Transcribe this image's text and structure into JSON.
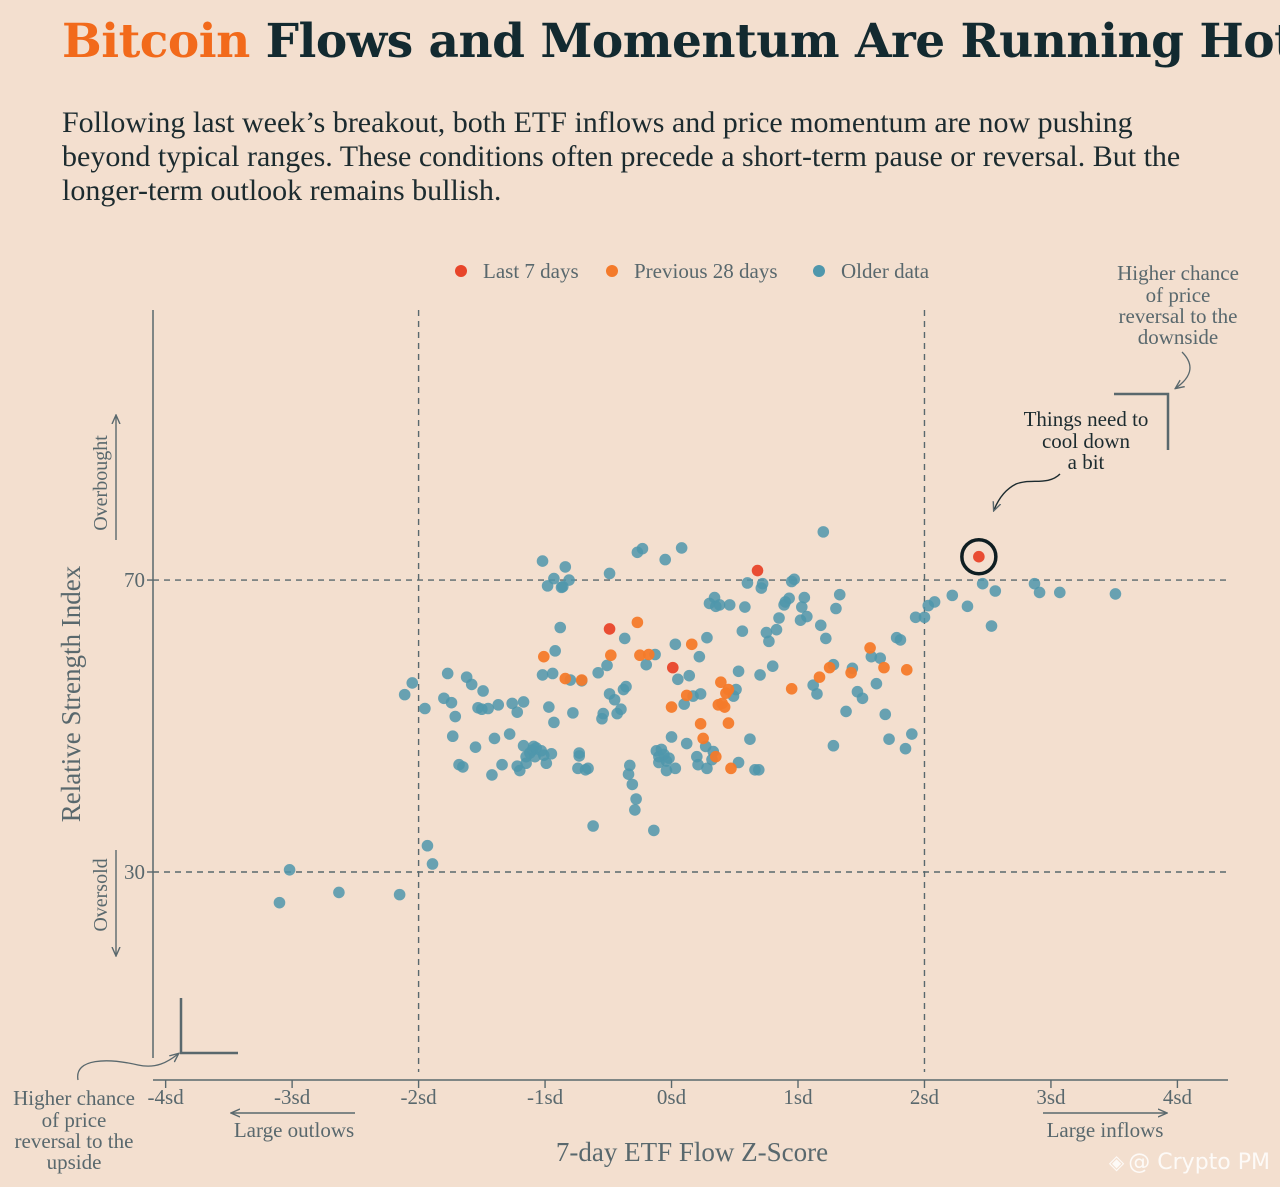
{
  "header": {
    "title_accent": "Bitcoin",
    "title_rest": " Flows and Momentum Are Running Hot",
    "subtitle": "Following last week’s breakout, both ETF inflows and price momentum are now pushing beyond typical ranges. These conditions often precede a short-term pause or reversal. But the longer-term outlook remains bullish."
  },
  "colors": {
    "last7": "#e8452a",
    "prev28": "#f47a2a",
    "older": "#4f97ac",
    "axis": "#59686d",
    "title_accent": "#f26a1b"
  },
  "annotations": {
    "top_right": [
      "Higher chance",
      "of price",
      "reversal to the",
      "downside"
    ],
    "bottom_left": [
      "Higher chance",
      "of price",
      "reversal to the",
      "upside"
    ],
    "callout": [
      "Things need to",
      "cool down",
      "a bit"
    ],
    "overbought": "Overbought",
    "oversold": "Oversold",
    "large_outlows": "Large outlows",
    "large_inflows": "Large inflows"
  },
  "watermark": {
    "icon": "binance-icon",
    "text": "@ Crypto PM"
  },
  "chart_data": {
    "type": "scatter",
    "title": "Bitcoin Flows and Momentum Are Running Hot",
    "xlabel": "7-day ETF Flow Z-Score",
    "ylabel": "Relative Strength Index",
    "xlim": [
      -4.1,
      4.4
    ],
    "ylim": [
      1.5,
      107
    ],
    "x_ticks": [
      -4,
      -3,
      -2,
      -1,
      0,
      1,
      2,
      3,
      4
    ],
    "x_tick_labels": [
      "-4sd",
      "-3sd",
      "-2sd",
      "-1sd",
      "0sd",
      "1sd",
      "2sd",
      "3sd",
      "4sd"
    ],
    "y_ticks": [
      30,
      70
    ],
    "y_tick_labels": [
      "30",
      "70"
    ],
    "reference_lines": {
      "x": [
        -2,
        2
      ],
      "y": [
        30,
        70
      ]
    },
    "legend_position": "top",
    "grid": false,
    "series": [
      {
        "name": "Last 7 days",
        "color_key": "last7",
        "points": [
          [
            -0.49,
            63.3
          ],
          [
            0.01,
            58.0
          ],
          [
            0.68,
            71.3
          ],
          [
            2.43,
            73.2
          ]
        ]
      },
      {
        "name": "Previous 28 days",
        "color_key": "prev28",
        "points": [
          [
            -1.01,
            59.5
          ],
          [
            -0.84,
            56.5
          ],
          [
            -0.71,
            56.3
          ],
          [
            -0.48,
            59.7
          ],
          [
            -0.27,
            64.2
          ],
          [
            -0.25,
            59.7
          ],
          [
            -0.18,
            59.8
          ],
          [
            0.0,
            52.6
          ],
          [
            0.12,
            54.2
          ],
          [
            0.16,
            61.2
          ],
          [
            0.23,
            50.3
          ],
          [
            0.25,
            48.3
          ],
          [
            0.35,
            45.8
          ],
          [
            0.37,
            52.9
          ],
          [
            0.39,
            56.0
          ],
          [
            0.4,
            53.1
          ],
          [
            0.42,
            52.6
          ],
          [
            0.43,
            54.5
          ],
          [
            0.45,
            55.0
          ],
          [
            0.45,
            50.4
          ],
          [
            0.47,
            44.2
          ],
          [
            0.95,
            55.1
          ],
          [
            1.17,
            56.7
          ],
          [
            1.25,
            58.0
          ],
          [
            1.42,
            57.3
          ],
          [
            1.57,
            60.7
          ],
          [
            1.68,
            58.0
          ],
          [
            1.86,
            57.7
          ]
        ]
      },
      {
        "name": "Older data",
        "color_key": "older",
        "points": [
          [
            -3.1,
            25.8
          ],
          [
            -3.02,
            30.3
          ],
          [
            -2.63,
            27.2
          ],
          [
            -2.15,
            26.9
          ],
          [
            -2.11,
            54.3
          ],
          [
            -2.05,
            55.9
          ],
          [
            -1.95,
            52.4
          ],
          [
            -1.93,
            33.6
          ],
          [
            -1.89,
            31.1
          ],
          [
            -1.8,
            53.8
          ],
          [
            -1.77,
            57.2
          ],
          [
            -1.74,
            53.2
          ],
          [
            -1.73,
            48.6
          ],
          [
            -1.71,
            51.3
          ],
          [
            -1.68,
            44.7
          ],
          [
            -1.62,
            56.7
          ],
          [
            -1.58,
            55.7
          ],
          [
            -1.55,
            47.1
          ],
          [
            -1.53,
            52.5
          ],
          [
            -1.5,
            52.3
          ],
          [
            -1.49,
            54.8
          ],
          [
            -1.45,
            52.4
          ],
          [
            -1.42,
            43.3
          ],
          [
            -1.4,
            48.3
          ],
          [
            -1.37,
            52.9
          ],
          [
            -1.34,
            44.7
          ],
          [
            -1.28,
            48.9
          ],
          [
            -1.26,
            53.1
          ],
          [
            -1.22,
            51.9
          ],
          [
            -1.22,
            44.5
          ],
          [
            -1.2,
            43.9
          ],
          [
            -1.17,
            53.3
          ],
          [
            -1.17,
            47.3
          ],
          [
            -1.15,
            45.8
          ],
          [
            -1.15,
            44.9
          ],
          [
            -1.12,
            46.3
          ],
          [
            -1.1,
            46.7
          ],
          [
            -1.09,
            47.2
          ],
          [
            -1.08,
            45.8
          ],
          [
            -1.07,
            47.0
          ],
          [
            -1.03,
            46.6
          ],
          [
            -1.01,
            46.0
          ],
          [
            -1.02,
            57.0
          ],
          [
            -0.99,
            44.9
          ],
          [
            -0.97,
            52.6
          ],
          [
            -0.94,
            57.2
          ],
          [
            -0.95,
            46.2
          ],
          [
            -0.93,
            50.5
          ],
          [
            -0.93,
            70.2
          ],
          [
            -0.98,
            69.2
          ],
          [
            -1.02,
            72.6
          ],
          [
            -0.92,
            60.3
          ],
          [
            -0.88,
            63.5
          ],
          [
            -0.87,
            69.0
          ],
          [
            -0.86,
            69.1
          ],
          [
            -0.84,
            71.8
          ],
          [
            -0.8,
            56.3
          ],
          [
            -0.81,
            70.0
          ],
          [
            -0.78,
            51.8
          ],
          [
            -0.74,
            44.2
          ],
          [
            -0.73,
            45.9
          ],
          [
            -0.73,
            46.3
          ],
          [
            -0.71,
            56.2
          ],
          [
            -0.66,
            44.2
          ],
          [
            -0.68,
            44.0
          ],
          [
            -0.62,
            36.3
          ],
          [
            -0.58,
            57.3
          ],
          [
            -0.55,
            51.0
          ],
          [
            -0.54,
            51.7
          ],
          [
            -0.49,
            54.4
          ],
          [
            -0.49,
            70.9
          ],
          [
            -0.45,
            53.6
          ],
          [
            -0.43,
            51.7
          ],
          [
            -0.4,
            52.3
          ],
          [
            -0.38,
            55.0
          ],
          [
            -0.36,
            55.4
          ],
          [
            -0.37,
            62.0
          ],
          [
            -0.34,
            43.4
          ],
          [
            -0.33,
            44.6
          ],
          [
            -0.31,
            42.0
          ],
          [
            -0.28,
            40.0
          ],
          [
            -0.29,
            38.5
          ],
          [
            -0.27,
            73.8
          ],
          [
            -0.23,
            74.3
          ],
          [
            -0.2,
            58.4
          ],
          [
            -0.14,
            35.7
          ],
          [
            -0.12,
            46.6
          ],
          [
            -0.1,
            45.0
          ],
          [
            -0.1,
            45.8
          ],
          [
            -0.08,
            46.8
          ],
          [
            -0.06,
            46.1
          ],
          [
            -0.04,
            43.9
          ],
          [
            -0.04,
            45.2
          ],
          [
            -0.05,
            72.8
          ],
          [
            -0.02,
            45.6
          ],
          [
            0.0,
            48.5
          ],
          [
            0.03,
            44.2
          ],
          [
            0.05,
            56.4
          ],
          [
            0.08,
            74.4
          ],
          [
            0.1,
            53.0
          ],
          [
            0.12,
            47.6
          ],
          [
            0.14,
            56.9
          ],
          [
            0.17,
            54.1
          ],
          [
            0.2,
            45.8
          ],
          [
            0.21,
            44.7
          ],
          [
            0.22,
            59.5
          ],
          [
            0.23,
            54.4
          ],
          [
            0.27,
            47.2
          ],
          [
            0.28,
            44.2
          ],
          [
            0.28,
            62.1
          ],
          [
            0.3,
            66.8
          ],
          [
            0.32,
            45.4
          ],
          [
            0.33,
            46.5
          ],
          [
            0.34,
            67.6
          ],
          [
            0.35,
            66.4
          ],
          [
            0.38,
            66.6
          ],
          [
            0.46,
            66.6
          ],
          [
            0.49,
            54.1
          ],
          [
            0.51,
            55.0
          ],
          [
            0.53,
            45.0
          ],
          [
            0.56,
            63.0
          ],
          [
            0.58,
            66.3
          ],
          [
            0.6,
            69.6
          ],
          [
            0.62,
            48.2
          ],
          [
            0.66,
            44.0
          ],
          [
            0.69,
            44.0
          ],
          [
            0.7,
            57.0
          ],
          [
            0.71,
            68.9
          ],
          [
            0.72,
            69.5
          ],
          [
            0.75,
            62.8
          ],
          [
            0.77,
            61.6
          ],
          [
            0.8,
            58.2
          ],
          [
            0.83,
            63.2
          ],
          [
            0.85,
            64.8
          ],
          [
            0.89,
            66.6
          ],
          [
            0.9,
            67.0
          ],
          [
            0.95,
            69.8
          ],
          [
            0.97,
            70.1
          ],
          [
            1.02,
            64.5
          ],
          [
            1.03,
            66.3
          ],
          [
            1.05,
            67.6
          ],
          [
            1.07,
            65.0
          ],
          [
            1.12,
            55.6
          ],
          [
            1.15,
            54.4
          ],
          [
            1.18,
            63.8
          ],
          [
            1.22,
            62.0
          ],
          [
            1.28,
            58.4
          ],
          [
            1.3,
            66.1
          ],
          [
            1.33,
            68.0
          ],
          [
            1.38,
            52.0
          ],
          [
            1.43,
            57.9
          ],
          [
            1.47,
            54.7
          ],
          [
            1.51,
            53.8
          ],
          [
            1.58,
            59.5
          ],
          [
            1.62,
            55.8
          ],
          [
            1.65,
            59.3
          ],
          [
            1.69,
            51.6
          ],
          [
            1.72,
            48.2
          ],
          [
            1.78,
            62.1
          ],
          [
            1.81,
            61.8
          ],
          [
            1.85,
            46.9
          ],
          [
            1.9,
            48.9
          ],
          [
            1.93,
            64.9
          ],
          [
            2.0,
            64.9
          ],
          [
            2.03,
            66.5
          ],
          [
            2.08,
            67.0
          ],
          [
            2.22,
            67.9
          ],
          [
            2.34,
            66.4
          ],
          [
            2.46,
            69.5
          ],
          [
            2.53,
            63.7
          ],
          [
            2.56,
            68.5
          ],
          [
            2.87,
            69.5
          ],
          [
            2.91,
            68.3
          ],
          [
            3.07,
            68.3
          ],
          [
            3.51,
            68.1
          ],
          [
            1.28,
            47.3
          ],
          [
            -0.13,
            59.8
          ],
          [
            0.03,
            61.2
          ],
          [
            0.93,
            67.5
          ],
          [
            -0.51,
            58.3
          ],
          [
            -1.65,
            44.4
          ],
          [
            0.53,
            57.5
          ],
          [
            1.2,
            76.6
          ]
        ]
      }
    ]
  }
}
